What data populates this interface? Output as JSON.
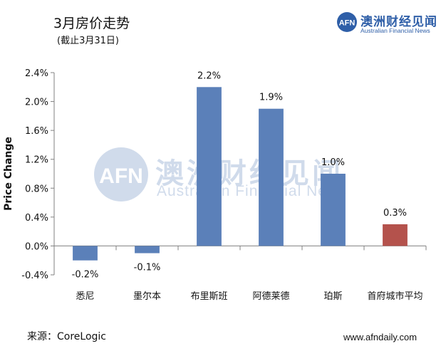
{
  "header": {
    "title": "3月房价走势",
    "subtitle": "(截止3月31日)"
  },
  "brand": {
    "logo_text": "AFN",
    "name": "澳洲财经见闻",
    "subname": "Australian Financial News",
    "color": "#2f5fa8"
  },
  "footer": {
    "source": "来源：CoreLogic",
    "website": "www.afndaily.com"
  },
  "chart_data": {
    "type": "bar",
    "title": "",
    "xlabel": "",
    "ylabel": "Price Change",
    "ylim": [
      -0.4,
      2.4
    ],
    "yticks": [
      "-0.4%",
      "0.0%",
      "0.4%",
      "0.8%",
      "1.2%",
      "1.6%",
      "2.0%",
      "2.4%"
    ],
    "ytick_values": [
      -0.4,
      0.0,
      0.4,
      0.8,
      1.2,
      1.6,
      2.0,
      2.4
    ],
    "categories": [
      "悉尼",
      "墨尔本",
      "布里斯班",
      "阿德莱德",
      "珀斯",
      "首府城市平均"
    ],
    "values": [
      -0.2,
      -0.1,
      2.2,
      1.9,
      1.0,
      0.3
    ],
    "data_labels": [
      "-0.2%",
      "-0.1%",
      "2.2%",
      "1.9%",
      "1.0%",
      "0.3%"
    ],
    "colors": [
      "#5b80b9",
      "#5b80b9",
      "#5b80b9",
      "#5b80b9",
      "#5b80b9",
      "#b4524c"
    ],
    "grid": false,
    "legend": "none"
  }
}
